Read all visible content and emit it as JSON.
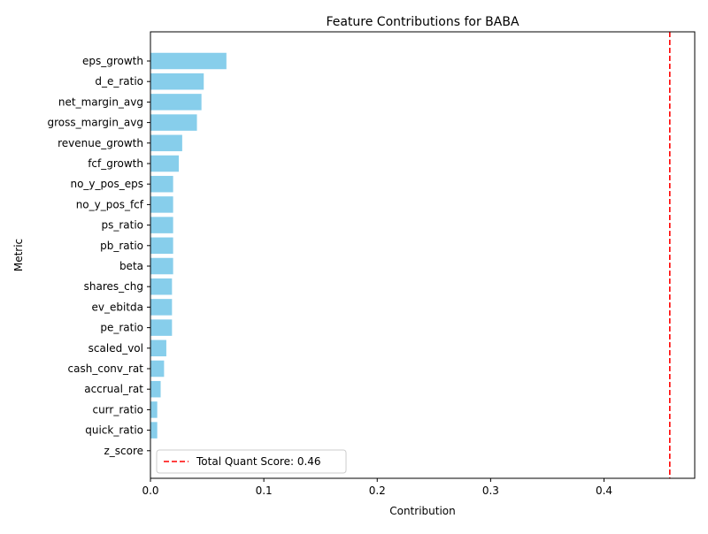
{
  "chart_data": {
    "type": "bar",
    "orientation": "horizontal",
    "title": "Feature Contributions for BABA",
    "xlabel": "Contribution",
    "ylabel": "Metric",
    "categories": [
      "eps_growth",
      "d_e_ratio",
      "net_margin_avg",
      "gross_margin_avg",
      "revenue_growth",
      "fcf_growth",
      "no_y_pos_eps",
      "no_y_pos_fcf",
      "ps_ratio",
      "pb_ratio",
      "beta",
      "shares_chg",
      "ev_ebitda",
      "pe_ratio",
      "scaled_vol",
      "cash_conv_rat",
      "accrual_rat",
      "curr_ratio",
      "quick_ratio",
      "z_score"
    ],
    "values": [
      0.067,
      0.047,
      0.045,
      0.041,
      0.028,
      0.025,
      0.02,
      0.02,
      0.02,
      0.02,
      0.02,
      0.019,
      0.019,
      0.019,
      0.014,
      0.012,
      0.009,
      0.006,
      0.006,
      0.0
    ],
    "xlim": [
      0,
      0.48
    ],
    "xticks": [
      0,
      0.1,
      0.2,
      0.3,
      0.4
    ],
    "xtick_labels": [
      "0.0",
      "0.1",
      "0.2",
      "0.3",
      "0.4"
    ],
    "bar_color": "#87ceeb",
    "reference_line": {
      "value": 0.458,
      "style": "dashed",
      "color": "#ff0000",
      "label": "Total Quant Score: 0.46"
    },
    "legend_position": "lower-left",
    "grid": false
  }
}
